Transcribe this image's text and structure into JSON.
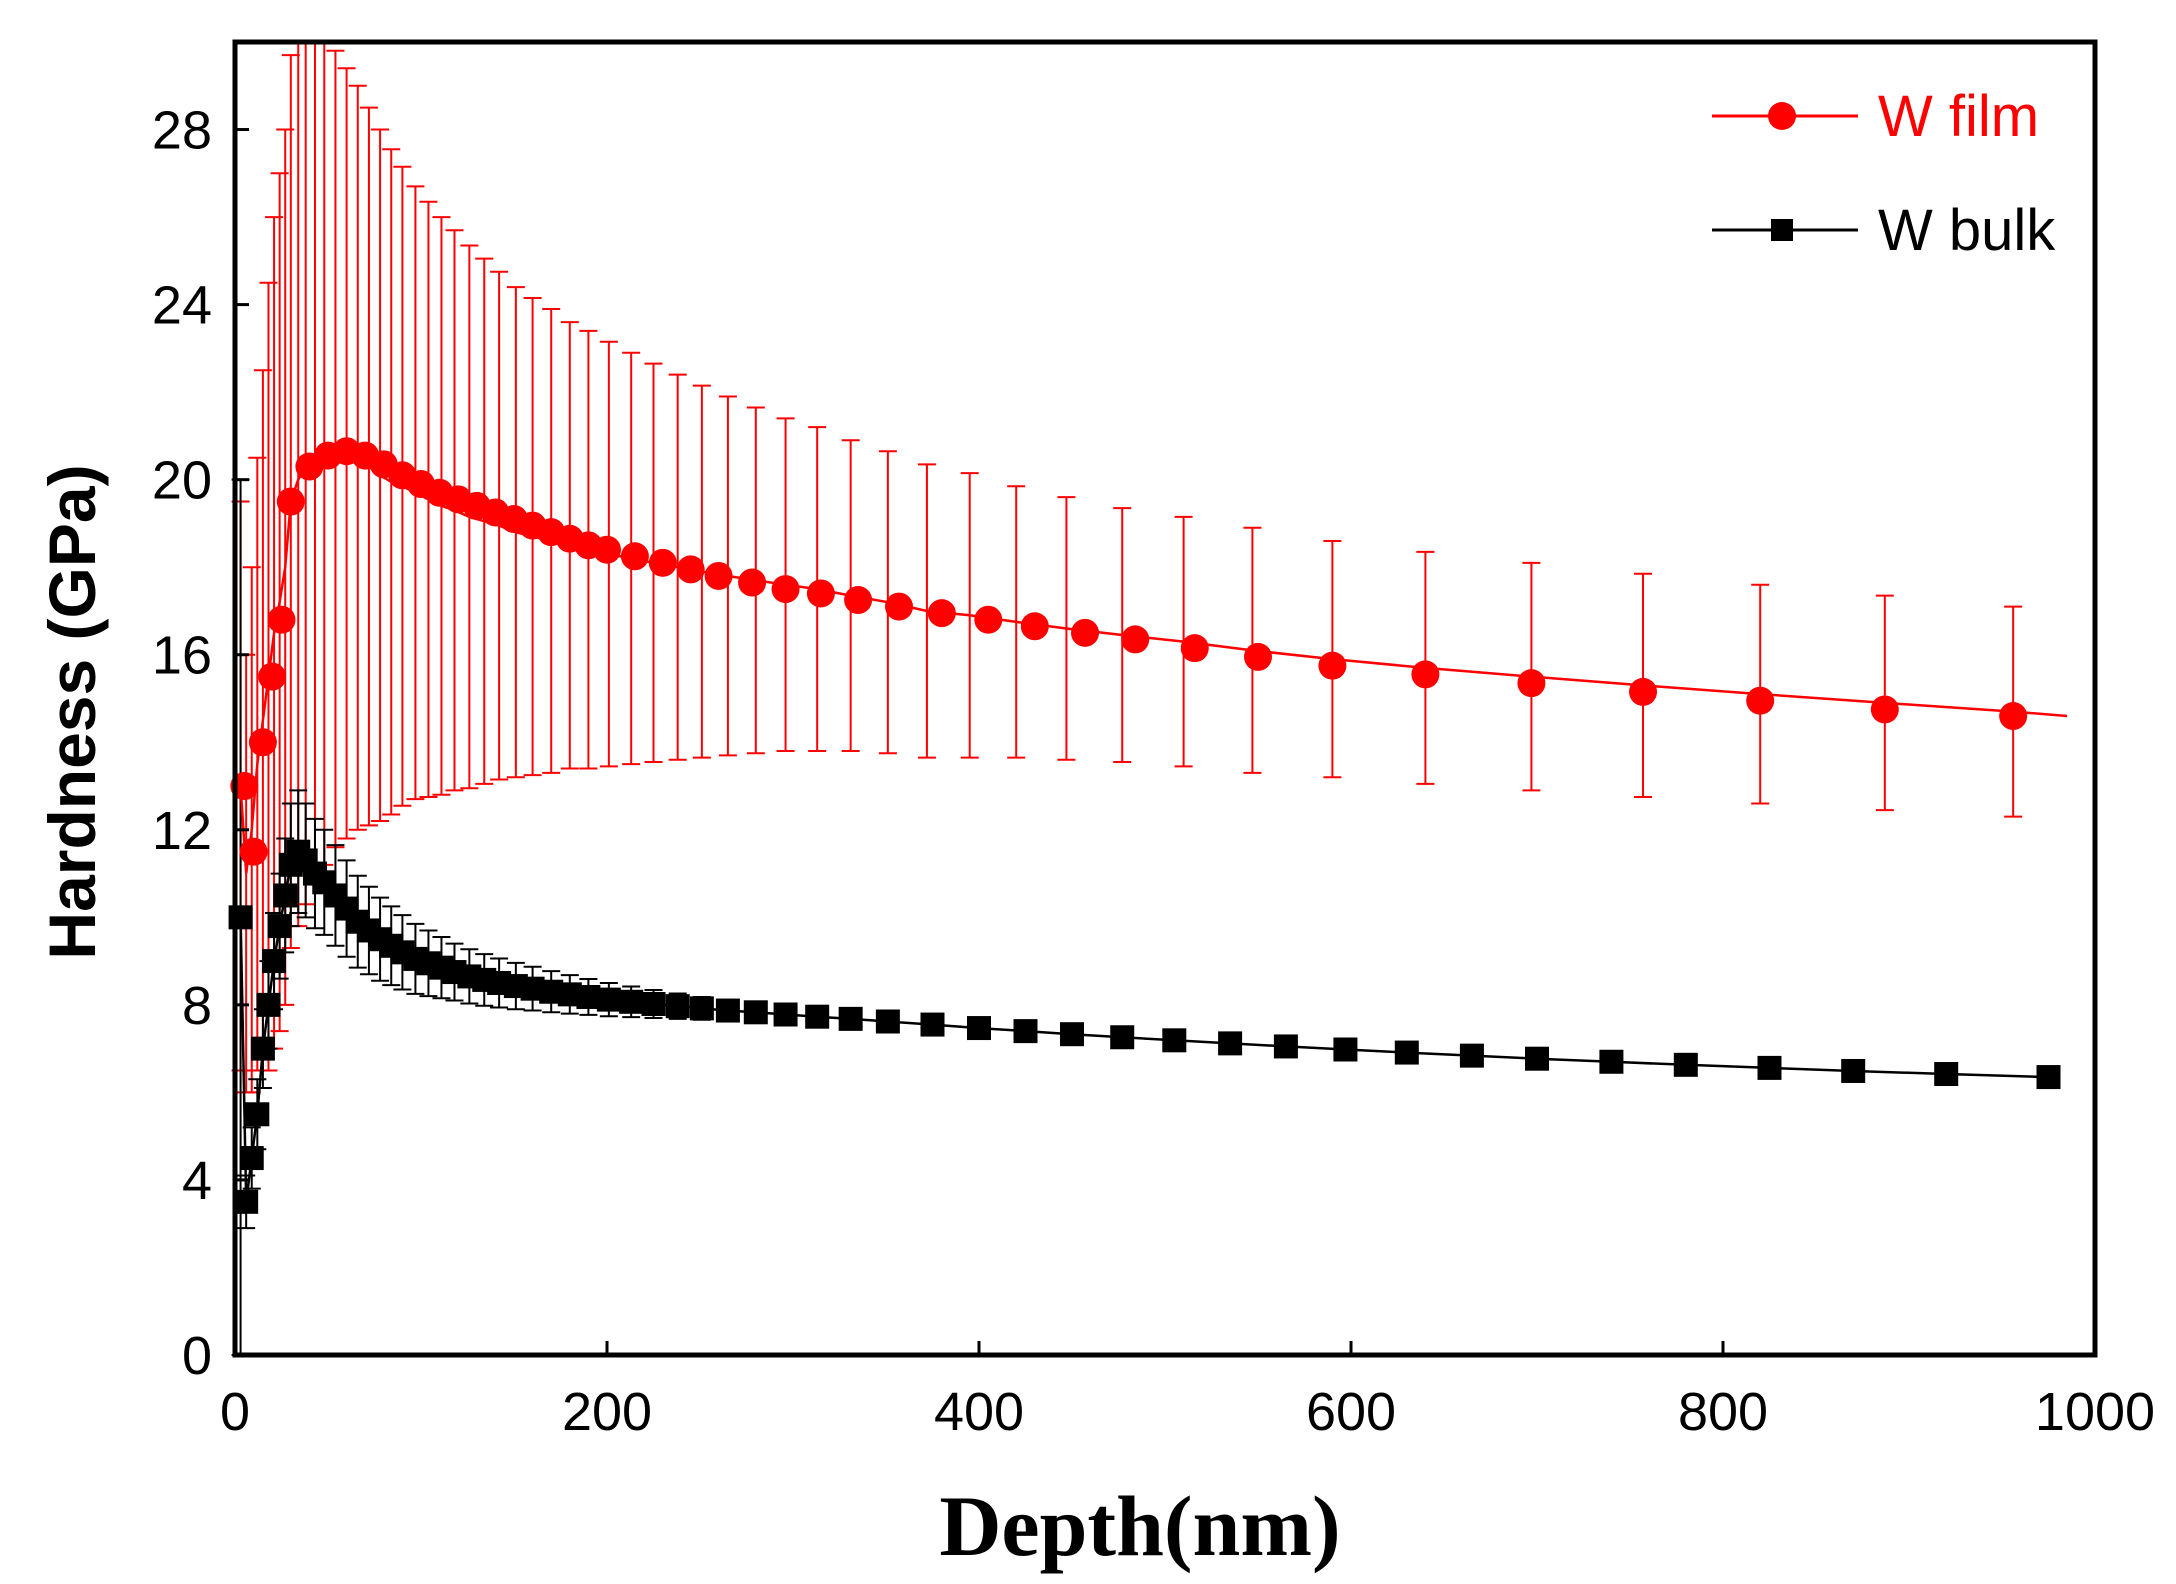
{
  "chart_data": {
    "type": "line",
    "xlabel": "Depth(nm)",
    "ylabel": "Hardness (GPa)",
    "xlim": [
      0,
      1000
    ],
    "ylim": [
      0,
      30
    ],
    "xticks": [
      0,
      200,
      400,
      600,
      800,
      1000
    ],
    "yticks": [
      0,
      4,
      8,
      12,
      16,
      20,
      24,
      28
    ],
    "grid": false,
    "legend_position": "top-right",
    "series": [
      {
        "name": "W film",
        "color": "#ff0000",
        "marker": "circle",
        "x": [
          3,
          6,
          9,
          12,
          15,
          18,
          21,
          24,
          27,
          30,
          34,
          38,
          43,
          48,
          54,
          60,
          66,
          72,
          78,
          84,
          90,
          97,
          104,
          111,
          118,
          126,
          134,
          142,
          151,
          160,
          170,
          180,
          190,
          201,
          213,
          225,
          238,
          251,
          265,
          280,
          296,
          313,
          331,
          351,
          372,
          395,
          420,
          447,
          477,
          510,
          547,
          590,
          640,
          697,
          757,
          820,
          887,
          956,
          985
        ],
        "y": [
          13.0,
          11.0,
          12.0,
          13.5,
          14.5,
          15.5,
          16.5,
          17.2,
          18.0,
          19.5,
          20.0,
          20.3,
          20.5,
          20.6,
          20.7,
          20.6,
          20.5,
          20.3,
          20.1,
          19.95,
          19.85,
          19.7,
          19.55,
          19.4,
          19.3,
          19.15,
          19.05,
          18.95,
          18.8,
          18.7,
          18.6,
          18.5,
          18.4,
          18.3,
          18.2,
          18.1,
          18.0,
          17.9,
          17.8,
          17.7,
          17.6,
          17.5,
          17.35,
          17.2,
          17.0,
          16.9,
          16.75,
          16.6,
          16.45,
          16.3,
          16.1,
          15.9,
          15.7,
          15.5,
          15.3,
          15.1,
          14.9,
          14.7,
          14.6
        ],
        "yerr": [
          6.5,
          5.0,
          6.0,
          7.0,
          8.0,
          9.0,
          9.5,
          9.8,
          10.0,
          10.2,
          10.2,
          10.0,
          9.7,
          9.4,
          9.1,
          8.8,
          8.5,
          8.2,
          7.9,
          7.6,
          7.3,
          7.0,
          6.8,
          6.6,
          6.4,
          6.2,
          6.0,
          5.8,
          5.6,
          5.45,
          5.3,
          5.1,
          5.0,
          4.85,
          4.7,
          4.55,
          4.4,
          4.25,
          4.1,
          3.95,
          3.8,
          3.7,
          3.55,
          3.45,
          3.35,
          3.25,
          3.1,
          3.0,
          2.9,
          2.85,
          2.8,
          2.7,
          2.65,
          2.6,
          2.55,
          2.5,
          2.45,
          2.4,
          0
        ],
        "markers_x": [
          5,
          10,
          15,
          20,
          25,
          30,
          40,
          50,
          60,
          70,
          80,
          90,
          100,
          110,
          120,
          130,
          140,
          150,
          160,
          170,
          180,
          190,
          200,
          215,
          230,
          245,
          260,
          278,
          296,
          315,
          335,
          357,
          380,
          405,
          430,
          457,
          484,
          516,
          550,
          590,
          640,
          697,
          757,
          820,
          887,
          956
        ],
        "markers_y": [
          13.0,
          11.5,
          14.0,
          15.5,
          16.8,
          19.5,
          20.3,
          20.55,
          20.65,
          20.55,
          20.35,
          20.1,
          19.9,
          19.7,
          19.55,
          19.4,
          19.25,
          19.1,
          18.95,
          18.8,
          18.65,
          18.5,
          18.4,
          18.25,
          18.1,
          17.95,
          17.8,
          17.65,
          17.5,
          17.4,
          17.25,
          17.1,
          16.95,
          16.8,
          16.65,
          16.5,
          16.35,
          16.15,
          15.95,
          15.75,
          15.55,
          15.35,
          15.15,
          14.95,
          14.75,
          14.6
        ]
      },
      {
        "name": "W bulk",
        "color": "#000000",
        "marker": "square",
        "x": [
          3,
          6,
          9,
          12,
          15,
          18,
          21,
          24,
          27,
          30,
          34,
          38,
          43,
          48,
          54,
          60,
          66,
          72,
          78,
          84,
          90,
          97,
          104,
          111,
          118,
          126,
          134,
          142,
          151,
          160,
          170,
          180,
          190,
          201,
          213,
          225,
          238,
          251,
          265,
          280,
          296,
          313,
          331,
          351,
          375,
          400,
          425,
          450,
          477,
          505,
          535,
          565,
          597,
          630,
          665,
          700,
          740,
          780,
          825,
          870,
          920,
          975
        ],
        "y": [
          10.0,
          3.5,
          4.5,
          5.5,
          7.0,
          8.0,
          9.0,
          9.8,
          10.5,
          11.2,
          11.5,
          11.3,
          11.0,
          10.8,
          10.5,
          10.2,
          9.9,
          9.7,
          9.5,
          9.35,
          9.2,
          9.05,
          8.95,
          8.85,
          8.75,
          8.65,
          8.57,
          8.5,
          8.43,
          8.37,
          8.3,
          8.24,
          8.18,
          8.12,
          8.07,
          8.02,
          7.97,
          7.92,
          7.87,
          7.83,
          7.78,
          7.73,
          7.68,
          7.62,
          7.55,
          7.47,
          7.4,
          7.33,
          7.26,
          7.19,
          7.12,
          7.05,
          6.98,
          6.91,
          6.84,
          6.77,
          6.7,
          6.63,
          6.56,
          6.49,
          6.42,
          6.35
        ],
        "yerr": [
          10.0,
          0.6,
          0.7,
          0.8,
          0.9,
          1.0,
          1.1,
          1.2,
          1.3,
          1.4,
          1.4,
          1.3,
          1.25,
          1.2,
          1.15,
          1.1,
          1.05,
          1.0,
          0.95,
          0.9,
          0.85,
          0.8,
          0.75,
          0.7,
          0.65,
          0.62,
          0.59,
          0.56,
          0.53,
          0.5,
          0.47,
          0.44,
          0.41,
          0.38,
          0.35,
          0.32,
          0.29,
          0.26,
          0.23,
          0.2,
          0,
          0,
          0,
          0,
          0,
          0,
          0,
          0,
          0,
          0,
          0,
          0,
          0,
          0,
          0,
          0,
          0,
          0,
          0,
          0,
          0,
          0
        ],
        "markers_x": [
          3,
          6,
          9,
          12,
          15,
          18,
          21,
          24,
          27,
          30,
          34,
          38,
          43,
          48,
          54,
          60,
          66,
          72,
          78,
          84,
          90,
          97,
          104,
          111,
          118,
          126,
          134,
          142,
          151,
          160,
          170,
          180,
          190,
          201,
          213,
          225,
          238,
          251,
          265,
          280,
          296,
          313,
          331,
          351,
          375,
          400,
          425,
          450,
          477,
          505,
          535,
          565,
          597,
          630,
          665,
          700,
          740,
          780,
          825,
          870,
          920,
          975
        ],
        "markers_y": [
          10.0,
          3.5,
          4.5,
          5.5,
          7.0,
          8.0,
          9.0,
          9.8,
          10.5,
          11.2,
          11.5,
          11.3,
          11.0,
          10.8,
          10.5,
          10.2,
          9.9,
          9.7,
          9.5,
          9.35,
          9.2,
          9.05,
          8.95,
          8.85,
          8.75,
          8.65,
          8.57,
          8.5,
          8.43,
          8.37,
          8.3,
          8.24,
          8.18,
          8.12,
          8.07,
          8.02,
          7.97,
          7.92,
          7.87,
          7.83,
          7.78,
          7.73,
          7.68,
          7.62,
          7.55,
          7.47,
          7.4,
          7.33,
          7.26,
          7.19,
          7.12,
          7.05,
          6.98,
          6.91,
          6.84,
          6.77,
          6.7,
          6.63,
          6.56,
          6.49,
          6.42,
          6.35
        ]
      }
    ]
  }
}
